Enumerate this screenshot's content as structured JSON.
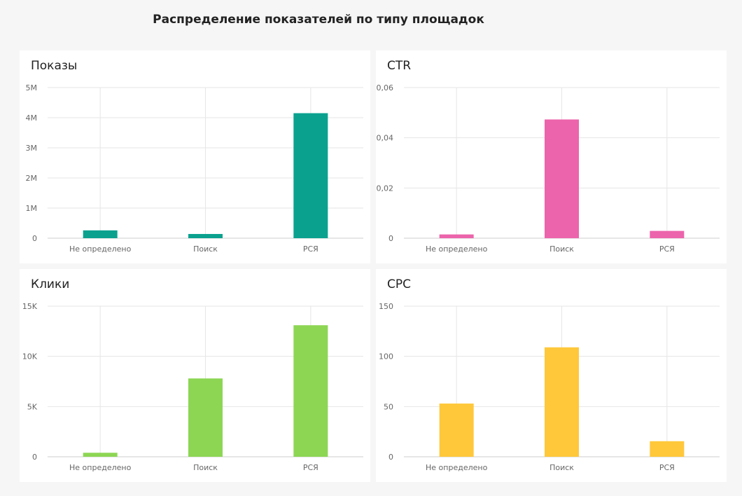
{
  "page_title": "Распределение показателей по типу площадок",
  "colors": {
    "background": "#f6f6f6",
    "panel": "#ffffff",
    "grid": "#e6e6e6",
    "axis": "#cccccc",
    "teal": "#0aa28f",
    "pink": "#ec64ab",
    "green": "#8dd654",
    "yellow": "#ffc83b"
  },
  "chart_data": [
    {
      "type": "bar",
      "title": "Показы",
      "categories": [
        "Не определено",
        "Поиск",
        "РСЯ"
      ],
      "values": [
        260000,
        140000,
        4150000
      ],
      "ylim": [
        0,
        5000000
      ],
      "yticks": [
        0,
        1000000,
        2000000,
        3000000,
        4000000,
        5000000
      ],
      "ytick_labels": [
        "0",
        "1M",
        "2M",
        "3M",
        "4M",
        "5M"
      ],
      "color": "#0aa28f",
      "grid": true
    },
    {
      "type": "bar",
      "title": "CTR",
      "categories": [
        "Не определено",
        "Поиск",
        "РСЯ"
      ],
      "values": [
        0.0015,
        0.0473,
        0.0029
      ],
      "ylim": [
        0,
        0.06
      ],
      "yticks": [
        0,
        0.02,
        0.04,
        0.06
      ],
      "ytick_labels": [
        "0",
        "0,02",
        "0,04",
        "0,06"
      ],
      "color": "#ec64ab",
      "grid": true
    },
    {
      "type": "bar",
      "title": "Клики",
      "categories": [
        "Не определено",
        "Поиск",
        "РСЯ"
      ],
      "values": [
        400,
        7800,
        13100
      ],
      "ylim": [
        0,
        15000
      ],
      "yticks": [
        0,
        5000,
        10000,
        15000
      ],
      "ytick_labels": [
        "0",
        "5K",
        "10K",
        "15K"
      ],
      "color": "#8dd654",
      "grid": true
    },
    {
      "type": "bar",
      "title": "CPC",
      "categories": [
        "Не определено",
        "Поиск",
        "РСЯ"
      ],
      "values": [
        53,
        109,
        15.5
      ],
      "ylim": [
        0,
        150
      ],
      "yticks": [
        0,
        50,
        100,
        150
      ],
      "ytick_labels": [
        "0",
        "50",
        "100",
        "150"
      ],
      "color": "#ffc83b",
      "grid": true
    }
  ]
}
